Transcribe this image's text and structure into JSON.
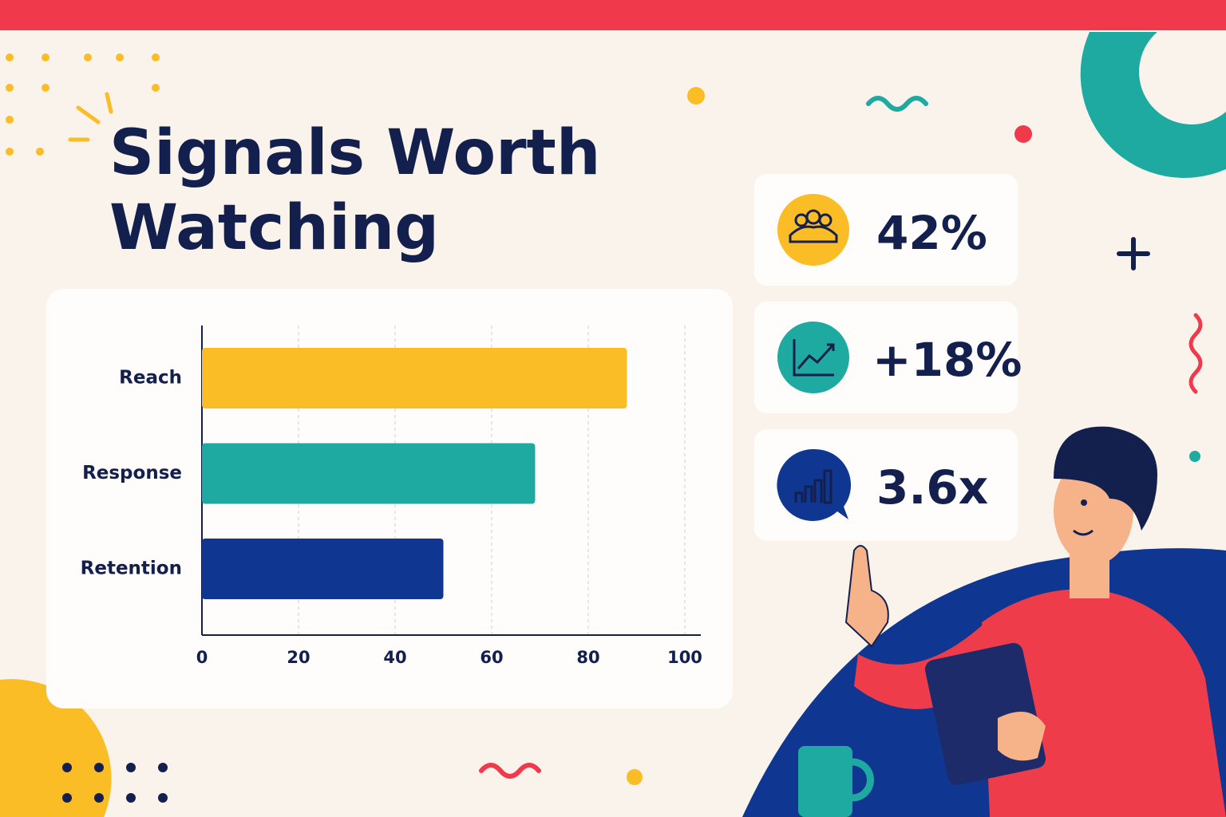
{
  "chart_data": {
    "type": "bar",
    "orientation": "horizontal",
    "title": "Signals Worth Watching",
    "categories": [
      "Reach",
      "Response",
      "Retention"
    ],
    "values": [
      88,
      69,
      50
    ],
    "colors": [
      "#fbbd26",
      "#1eaaa0",
      "#0f3690"
    ],
    "xlim": [
      0,
      100
    ],
    "xticks": [
      0,
      20,
      40,
      60,
      80,
      100
    ],
    "grid": true
  },
  "stat_cards": [
    "42%",
    "+18%",
    "3.6x"
  ]
}
